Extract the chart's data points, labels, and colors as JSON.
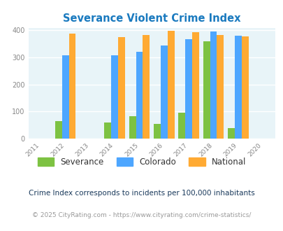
{
  "title": "Severance Violent Crime Index",
  "years": [
    2012,
    2014,
    2015,
    2016,
    2017,
    2018,
    2019
  ],
  "severance": [
    65,
    60,
    83,
    54,
    96,
    360,
    40
  ],
  "colorado": [
    308,
    308,
    321,
    343,
    367,
    397,
    381
  ],
  "national": [
    387,
    376,
    384,
    398,
    394,
    382,
    378
  ],
  "severance_color": "#7dc242",
  "colorado_color": "#4da6ff",
  "national_color": "#ffaa33",
  "bg_color": "#e8f4f8",
  "ylim": [
    0,
    410
  ],
  "yticks": [
    0,
    100,
    200,
    300,
    400
  ],
  "xticks": [
    2011,
    2012,
    2013,
    2014,
    2015,
    2016,
    2017,
    2018,
    2019,
    2020
  ],
  "legend_labels": [
    "Severance",
    "Colorado",
    "National"
  ],
  "footnote1": "Crime Index corresponds to incidents per 100,000 inhabitants",
  "footnote2": "© 2025 CityRating.com - https://www.cityrating.com/crime-statistics/",
  "bar_width": 0.28,
  "title_color": "#1a7abf",
  "tick_color": "#888888",
  "footnote1_color": "#1a3a5c",
  "footnote2_color": "#999999"
}
